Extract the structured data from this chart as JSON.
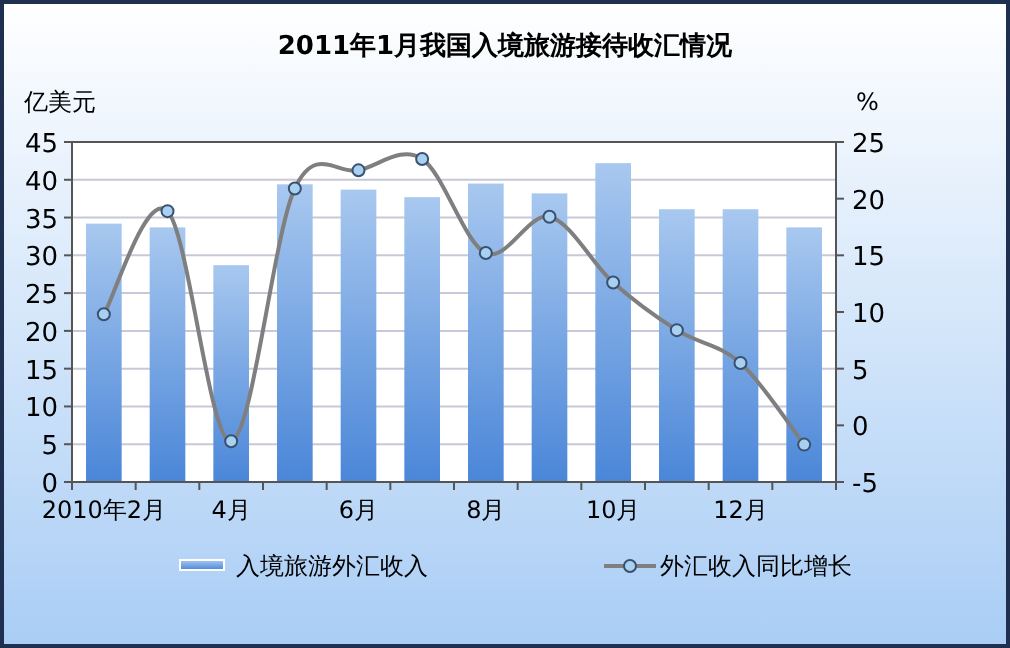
{
  "chart_data": {
    "type": "bar",
    "title": "2011年1月我国入境旅游接待收汇情况",
    "ylabel": "亿美元",
    "y2label": "%",
    "categories": [
      "2010年2月",
      null,
      "4月",
      null,
      "6月",
      null,
      "8月",
      null,
      "10月",
      null,
      "12月",
      null
    ],
    "series": [
      {
        "name": "入境旅游外汇收入",
        "color": "#4a86d8",
        "values": [
          34.2,
          33.7,
          28.7,
          39.4,
          38.7,
          37.7,
          39.5,
          38.2,
          42.2,
          36.1,
          36.1,
          33.7
        ]
      },
      {
        "name": "外汇收入同比增长",
        "type": "line",
        "axis": "y2",
        "color": "#7f7f7f",
        "marker": "circle",
        "values": [
          9.8,
          18.9,
          -1.4,
          20.9,
          22.5,
          23.5,
          15.2,
          18.4,
          12.6,
          8.4,
          5.5,
          -1.7
        ]
      }
    ],
    "ylim": [
      0,
      45
    ],
    "yticks": [
      0,
      5,
      10,
      15,
      20,
      25,
      30,
      35,
      40,
      45
    ],
    "y2lim": [
      -5,
      25
    ],
    "y2ticks": [
      -5,
      0,
      5,
      10,
      15,
      20,
      25
    ],
    "grid": "y",
    "legend": "bottom"
  }
}
